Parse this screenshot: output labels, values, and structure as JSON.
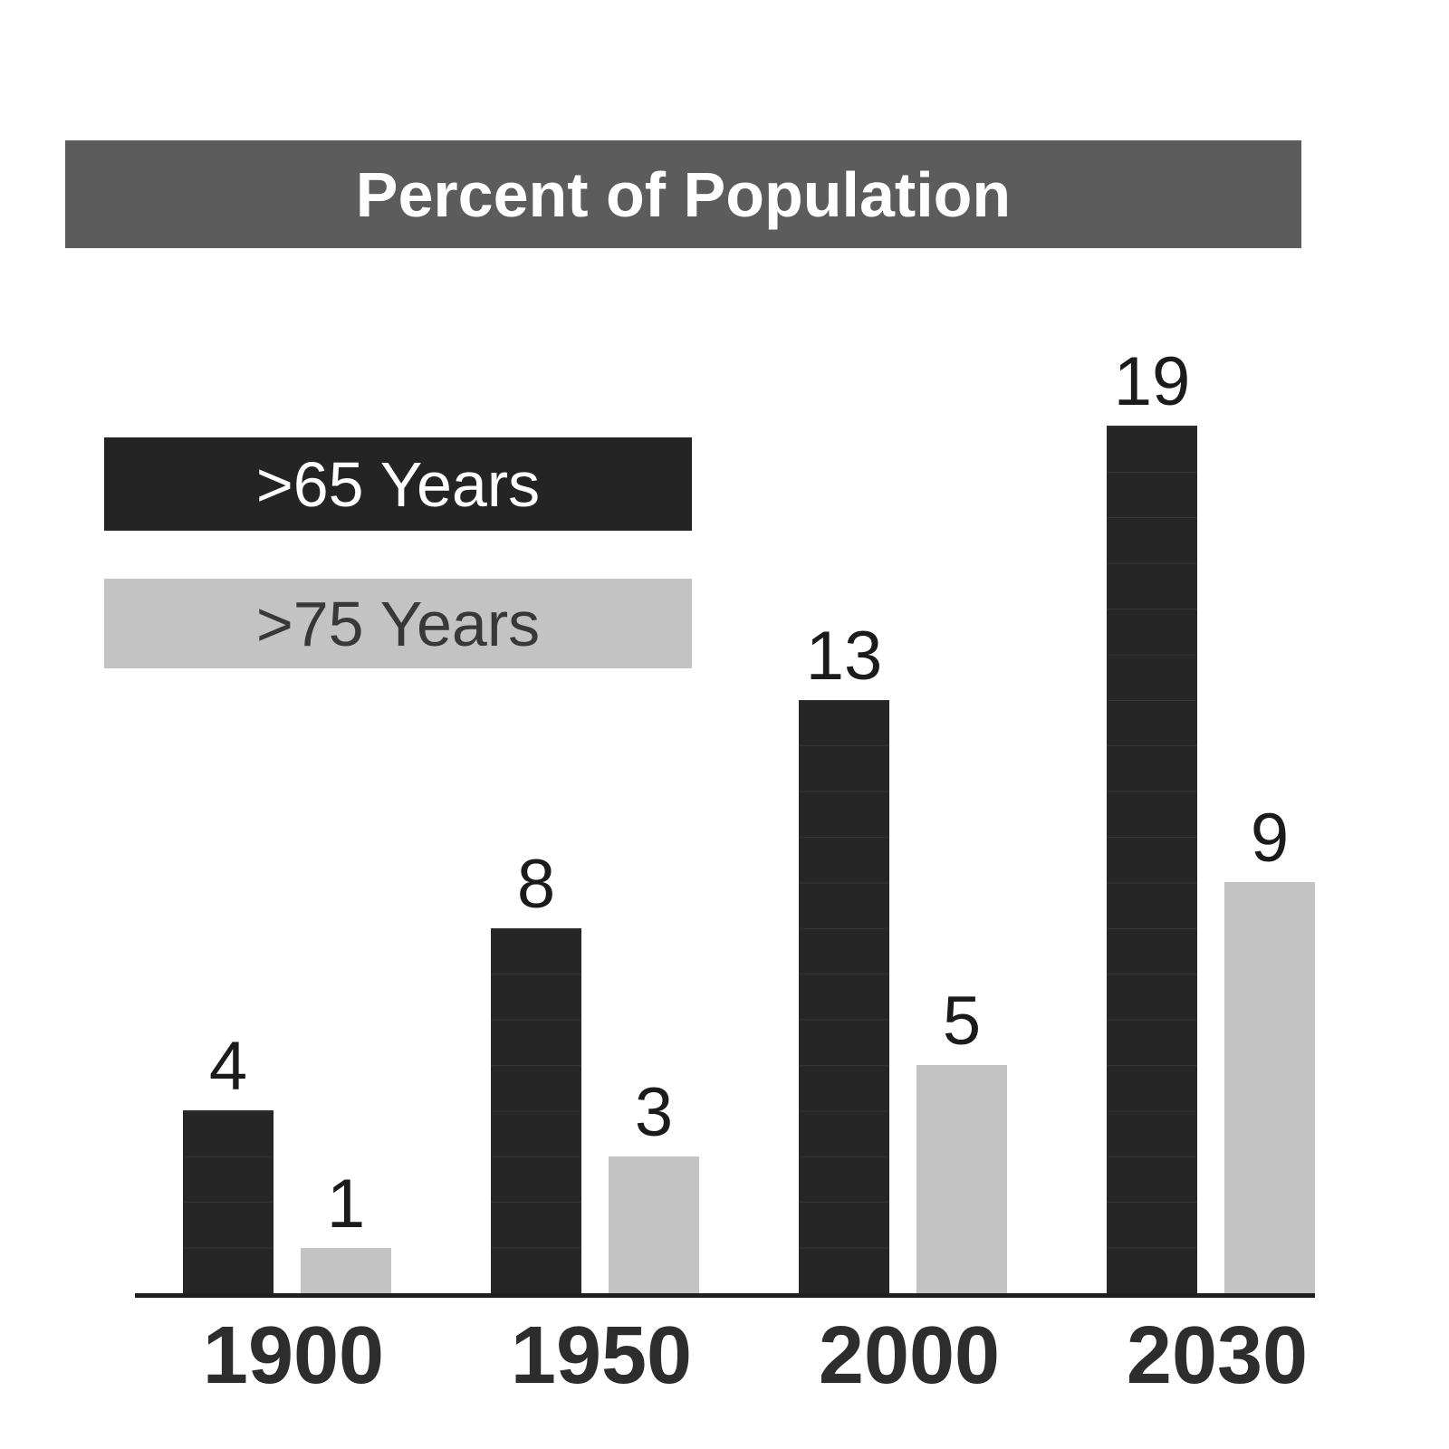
{
  "title": "Percent of Population",
  "legend": {
    "items": [
      {
        "label": ">65 Years",
        "color": "#242424",
        "text_color": "#ffffff"
      },
      {
        "label": ">75 Years",
        "color": "#c3c3c3",
        "text_color": "#383838"
      }
    ]
  },
  "x_axis": {
    "tick_labels": [
      "1900",
      "1950",
      "2000",
      "2030"
    ]
  },
  "chart_data": {
    "type": "bar",
    "title": "Percent of Population",
    "categories": [
      "1900",
      "1950",
      "2000",
      "2030"
    ],
    "series": [
      {
        "name": ">65 Years",
        "values": [
          4,
          8,
          13,
          19
        ],
        "color": "#262626"
      },
      {
        "name": ">75 Years",
        "values": [
          1,
          3,
          5,
          9
        ],
        "color": "#c3c3c3"
      }
    ],
    "xlabel": "",
    "ylabel": "",
    "ylim": [
      0,
      20
    ],
    "grid": false,
    "show_value_labels": true,
    "legend_position": "upper-left",
    "colors": {
      "background": "#ffffff",
      "title_bar_bg": "#5c5c5c",
      "title_text": "#ffffff",
      "axis_line": "#1f1f1f",
      "value_label_text": "#1b1b1b",
      "tick_label_text": "#2d2d2d"
    }
  }
}
